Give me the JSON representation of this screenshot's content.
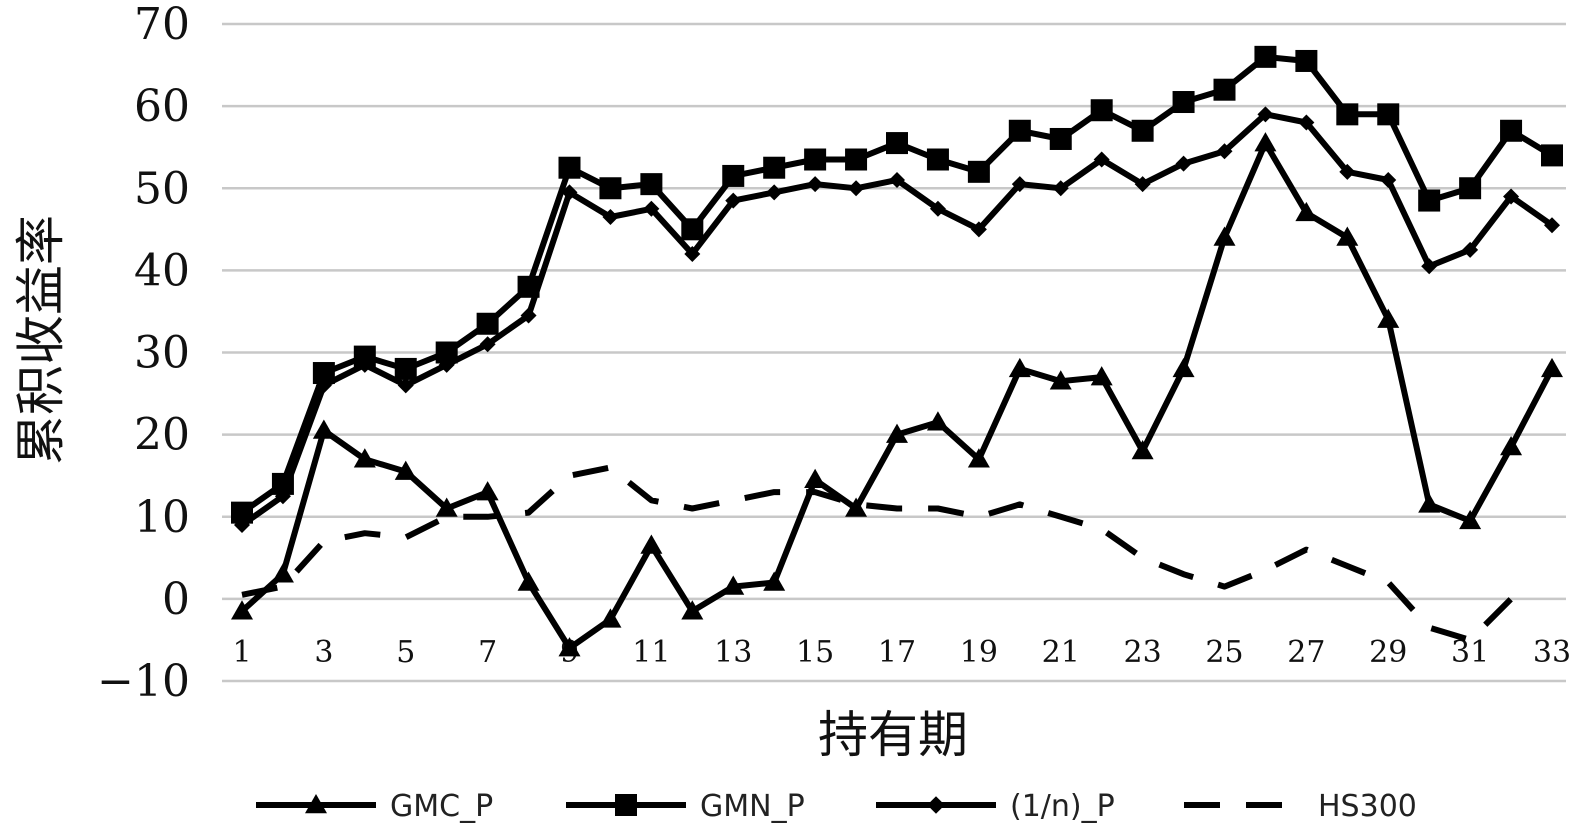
{
  "chart_data": {
    "type": "line",
    "title": "",
    "xlabel": "持有期",
    "ylabel": "累积收益率",
    "ylim": [
      -10,
      70
    ],
    "yticks": [
      -10,
      0,
      10,
      20,
      30,
      40,
      50,
      60,
      70
    ],
    "x": [
      1,
      2,
      3,
      4,
      5,
      6,
      7,
      8,
      9,
      10,
      11,
      12,
      13,
      14,
      15,
      16,
      17,
      18,
      19,
      20,
      21,
      22,
      23,
      24,
      25,
      26,
      27,
      28,
      29,
      30,
      31,
      32,
      33
    ],
    "xtick_labels": [
      "1",
      "3",
      "5",
      "7",
      "9",
      "11",
      "13",
      "15",
      "17",
      "19",
      "21",
      "23",
      "25",
      "27",
      "29",
      "31",
      "33"
    ],
    "grid": true,
    "legend_position": "bottom",
    "series": [
      {
        "name": "GMC_P",
        "marker": "triangle",
        "style": "solid",
        "values": [
          -1.5,
          3,
          20.5,
          17,
          15.5,
          11,
          13,
          2,
          -6,
          -2.5,
          6.5,
          -1.5,
          1.5,
          2,
          14.5,
          11,
          20,
          21.5,
          17,
          28,
          26.5,
          27,
          18,
          28,
          44,
          55.5,
          47,
          44,
          34,
          11.5,
          9.5,
          18.5,
          28
        ]
      },
      {
        "name": "GMN_P",
        "marker": "square",
        "style": "solid",
        "values": [
          10.5,
          14,
          27.5,
          29.5,
          28,
          30,
          33.5,
          38,
          52.5,
          50,
          50.5,
          45,
          51.5,
          52.5,
          53.5,
          53.5,
          55.5,
          53.5,
          52,
          57,
          56,
          59.5,
          57,
          60.5,
          62,
          66,
          65.5,
          59,
          59,
          48.5,
          50,
          57,
          54
        ]
      },
      {
        "name": "(1/n)_P",
        "marker": "diamond",
        "style": "solid",
        "values": [
          9,
          12.5,
          26,
          28.5,
          26,
          28.5,
          31,
          34.5,
          49.5,
          46.5,
          47.5,
          42,
          48.5,
          49.5,
          50.5,
          50,
          51,
          47.5,
          45,
          50.5,
          50,
          53.5,
          50.5,
          53,
          54.5,
          59,
          58,
          52,
          51,
          40.5,
          42.5,
          49,
          45.5
        ]
      },
      {
        "name": "HS300",
        "marker": "none",
        "style": "dashed",
        "values": [
          0.5,
          1.5,
          7,
          8,
          7.5,
          10,
          10,
          10.5,
          15,
          16,
          12,
          11,
          12,
          13,
          13,
          11.5,
          11,
          11,
          10,
          11.5,
          10,
          8.5,
          5,
          3,
          1.5,
          3.5,
          6,
          4,
          2,
          -3.5,
          -5,
          0,
          null
        ]
      }
    ]
  }
}
